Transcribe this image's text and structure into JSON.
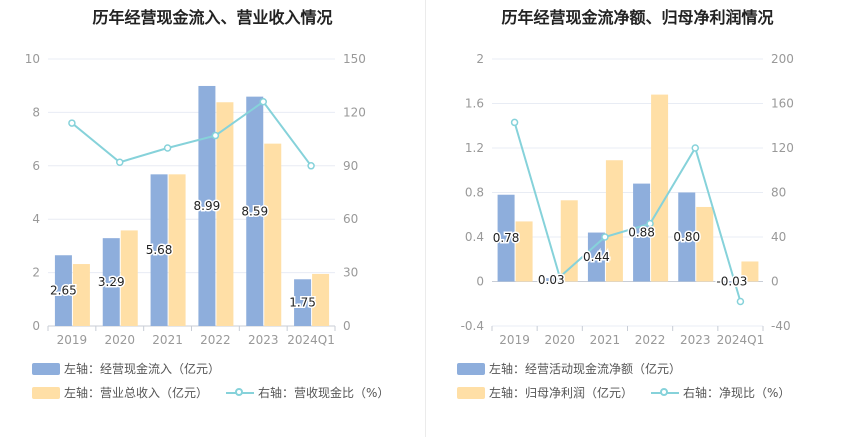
{
  "colors": {
    "bar1": "#8eaedc",
    "bar2": "#ffdfa6",
    "line": "#86d2da",
    "grid": "#e8ecf4",
    "axis_text": "#999999"
  },
  "charts": [
    {
      "title": "历年经营现金流入、营业收入情况",
      "legend": [
        {
          "prefix": "左轴：",
          "label": "经营现金流入（亿元）",
          "kind": "bar",
          "color": "#8eaedc"
        },
        {
          "prefix": "左轴：",
          "label": "营业总收入（亿元）",
          "kind": "bar",
          "color": "#ffdfa6"
        },
        {
          "prefix": "右轴：",
          "label": "营收现金比（%）",
          "kind": "line",
          "color": "#86d2da"
        }
      ]
    },
    {
      "title": "历年经营现金流净额、归母净利润情况",
      "legend": [
        {
          "prefix": "左轴：",
          "label": "经营活动现金流净额（亿元）",
          "kind": "bar",
          "color": "#8eaedc"
        },
        {
          "prefix": "左轴：",
          "label": "归母净利润（亿元）",
          "kind": "bar",
          "color": "#ffdfa6"
        },
        {
          "prefix": "右轴：",
          "label": "净现比（%）",
          "kind": "line",
          "color": "#86d2da"
        }
      ]
    }
  ],
  "chart_data": [
    {
      "type": "bar",
      "title": "历年经营现金流入、营业收入情况",
      "categories": [
        "2019",
        "2020",
        "2021",
        "2022",
        "2023",
        "2024Q1"
      ],
      "left_axis": {
        "min": 0,
        "max": 10,
        "ticks": [
          0,
          2,
          4,
          6,
          8,
          10
        ]
      },
      "right_axis": {
        "min": 0,
        "max": 150,
        "ticks": [
          0,
          30,
          60,
          90,
          120,
          150
        ]
      },
      "series": [
        {
          "name": "经营现金流入（亿元）",
          "axis": "left",
          "kind": "bar",
          "values": [
            2.65,
            3.29,
            5.68,
            8.99,
            8.59,
            1.75
          ],
          "labels": [
            "2.65",
            "3.29",
            "5.68",
            "8.99",
            "8.59",
            "1.75"
          ]
        },
        {
          "name": "营业总收入（亿元）",
          "axis": "left",
          "kind": "bar",
          "values": [
            2.32,
            3.58,
            5.68,
            8.38,
            6.83,
            1.95
          ]
        },
        {
          "name": "营收现金比（%）",
          "axis": "right",
          "kind": "line",
          "values": [
            114,
            92,
            100,
            107,
            126,
            90
          ]
        }
      ]
    },
    {
      "type": "bar",
      "title": "历年经营现金流净额、归母净利润情况",
      "categories": [
        "2019",
        "2020",
        "2021",
        "2022",
        "2023",
        "2024Q1"
      ],
      "left_axis": {
        "min": -0.4,
        "max": 2,
        "ticks": [
          "-0.4",
          "0",
          "0.4",
          "0.8",
          "1.2",
          "1.6",
          "2"
        ]
      },
      "right_axis": {
        "min": -40,
        "max": 200,
        "ticks": [
          "-40",
          "0",
          "40",
          "80",
          "120",
          "160",
          "200"
        ]
      },
      "series": [
        {
          "name": "经营活动现金流净额（亿元）",
          "axis": "left",
          "kind": "bar",
          "values": [
            0.78,
            0.03,
            0.44,
            0.88,
            0.8,
            -0.03
          ],
          "labels": [
            "0.78",
            "0.03",
            "0.44",
            "0.88",
            "0.80",
            "-0.03"
          ]
        },
        {
          "name": "归母净利润（亿元）",
          "axis": "left",
          "kind": "bar",
          "values": [
            0.54,
            0.73,
            1.09,
            1.68,
            0.67,
            0.18
          ]
        },
        {
          "name": "净现比（%）",
          "axis": "right",
          "kind": "line",
          "values": [
            143,
            4,
            40,
            52,
            120,
            -18
          ]
        }
      ]
    }
  ]
}
